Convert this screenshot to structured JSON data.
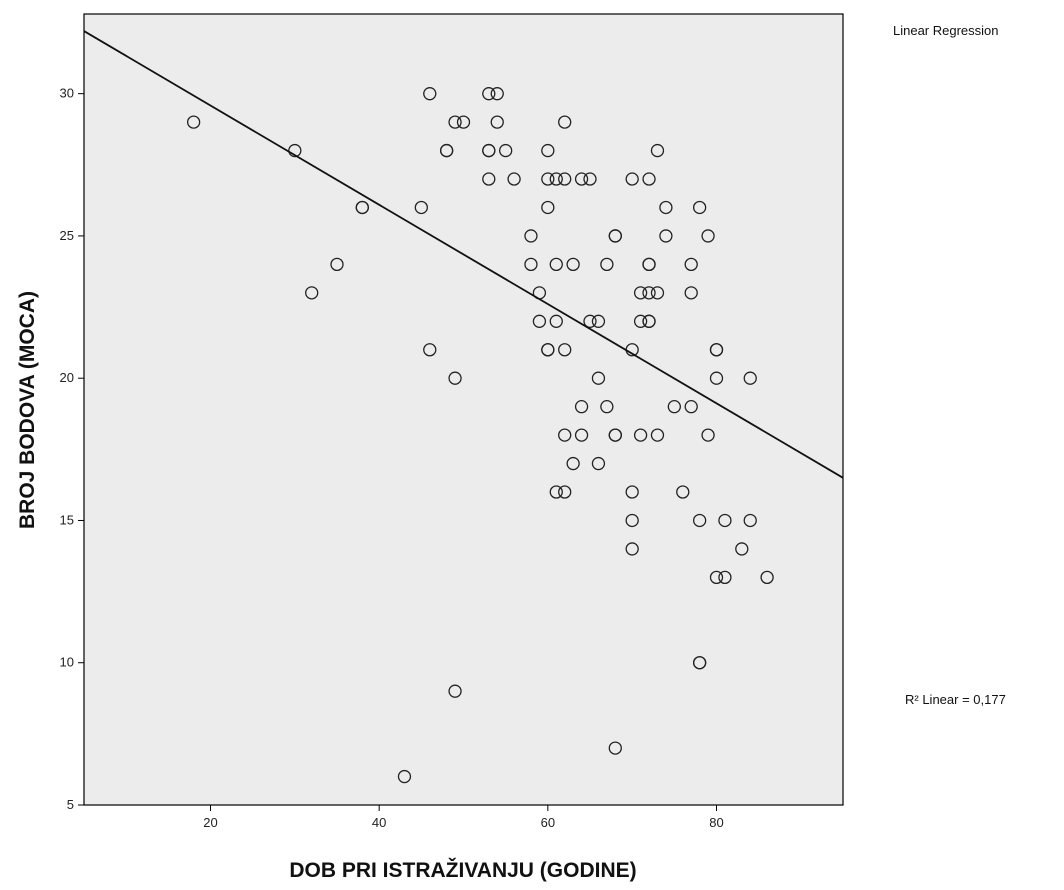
{
  "chart_data": {
    "type": "scatter",
    "xlabel": "DOB PRI ISTRAŽIVANJU (GODINE)",
    "ylabel": "BROJ BODOVA (MOCA)",
    "xlim": [
      5,
      95
    ],
    "ylim": [
      5,
      32.8
    ],
    "xticks": [
      20,
      40,
      60,
      80
    ],
    "yticks": [
      5,
      10,
      15,
      20,
      25,
      30
    ],
    "grid": false,
    "legend": "right",
    "legend_entry": "Linear Regression",
    "annotation": "R² Linear = 0,177",
    "fit_line": {
      "x": [
        5,
        95
      ],
      "y": [
        32.2,
        16.5
      ]
    },
    "plot_background": "#ececec",
    "marker_color": "#222222",
    "line_color": "#111111",
    "points": [
      [
        18,
        29
      ],
      [
        30,
        28
      ],
      [
        32,
        23
      ],
      [
        35,
        24
      ],
      [
        38,
        26
      ],
      [
        38,
        26
      ],
      [
        43,
        6
      ],
      [
        45,
        26
      ],
      [
        46,
        30
      ],
      [
        46,
        21
      ],
      [
        48,
        28
      ],
      [
        48,
        28
      ],
      [
        49,
        29
      ],
      [
        49,
        20
      ],
      [
        49,
        9
      ],
      [
        50,
        29
      ],
      [
        53,
        30
      ],
      [
        53,
        28
      ],
      [
        53,
        28
      ],
      [
        53,
        27
      ],
      [
        54,
        30
      ],
      [
        54,
        29
      ],
      [
        55,
        28
      ],
      [
        56,
        27
      ],
      [
        58,
        25
      ],
      [
        58,
        24
      ],
      [
        59,
        23
      ],
      [
        59,
        22
      ],
      [
        60,
        28
      ],
      [
        60,
        27
      ],
      [
        60,
        26
      ],
      [
        60,
        21
      ],
      [
        60,
        21
      ],
      [
        61,
        27
      ],
      [
        61,
        24
      ],
      [
        61,
        22
      ],
      [
        61,
        16
      ],
      [
        62,
        29
      ],
      [
        62,
        27
      ],
      [
        62,
        21
      ],
      [
        62,
        18
      ],
      [
        62,
        16
      ],
      [
        63,
        24
      ],
      [
        63,
        17
      ],
      [
        64,
        27
      ],
      [
        64,
        19
      ],
      [
        64,
        18
      ],
      [
        65,
        27
      ],
      [
        65,
        22
      ],
      [
        66,
        22
      ],
      [
        66,
        20
      ],
      [
        66,
        17
      ],
      [
        67,
        24
      ],
      [
        67,
        19
      ],
      [
        68,
        25
      ],
      [
        68,
        25
      ],
      [
        68,
        18
      ],
      [
        68,
        18
      ],
      [
        68,
        7
      ],
      [
        70,
        27
      ],
      [
        70,
        21
      ],
      [
        70,
        16
      ],
      [
        70,
        15
      ],
      [
        70,
        14
      ],
      [
        71,
        23
      ],
      [
        71,
        22
      ],
      [
        71,
        18
      ],
      [
        72,
        27
      ],
      [
        72,
        24
      ],
      [
        72,
        24
      ],
      [
        72,
        23
      ],
      [
        72,
        22
      ],
      [
        72,
        22
      ],
      [
        73,
        28
      ],
      [
        73,
        23
      ],
      [
        73,
        18
      ],
      [
        74,
        26
      ],
      [
        74,
        25
      ],
      [
        75,
        19
      ],
      [
        76,
        16
      ],
      [
        77,
        24
      ],
      [
        77,
        23
      ],
      [
        77,
        19
      ],
      [
        78,
        26
      ],
      [
        78,
        15
      ],
      [
        78,
        10
      ],
      [
        78,
        10
      ],
      [
        79,
        25
      ],
      [
        79,
        18
      ],
      [
        80,
        21
      ],
      [
        80,
        21
      ],
      [
        80,
        20
      ],
      [
        80,
        13
      ],
      [
        81,
        15
      ],
      [
        81,
        13
      ],
      [
        83,
        14
      ],
      [
        84,
        20
      ],
      [
        84,
        15
      ],
      [
        86,
        13
      ]
    ]
  }
}
